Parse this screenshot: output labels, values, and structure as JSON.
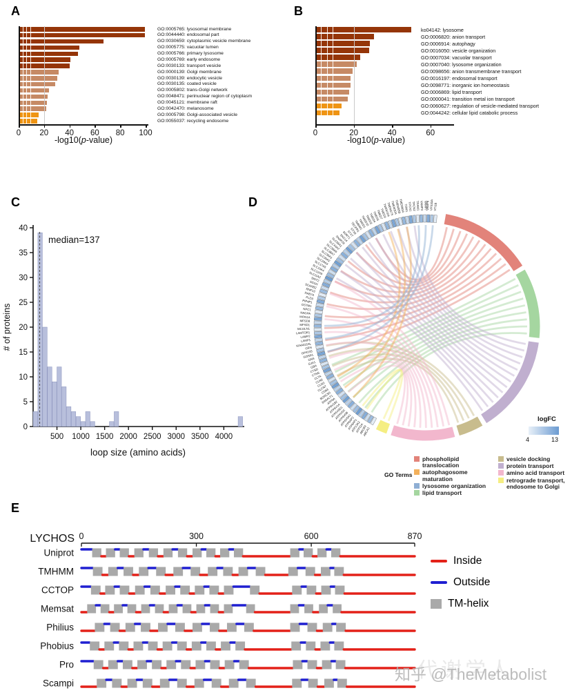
{
  "panel_labels": {
    "a": "A",
    "b": "B",
    "c": "C",
    "d": "D",
    "e": "E"
  },
  "axis_label": {
    "pre": "-log10(",
    "it": "p",
    "post": "-value)"
  },
  "watermark": {
    "text": "知乎 @TheMetabolist",
    "overlay": "代谢学人"
  },
  "chart_data": [
    {
      "id": "A",
      "type": "bar",
      "orientation": "horizontal",
      "xlabel": "-log10(p-value)",
      "xlim": [
        0,
        102
      ],
      "xticks": [
        0,
        20,
        40,
        60,
        80,
        100
      ],
      "categories": [
        "GO:0005765: lysosomal membrane",
        "GO:0044440: endosomal part",
        "GO:0030659: cytoplasmic vesicle membrane",
        "GO:0005775: vacuolar lumen",
        "GO:0005766: primary lysosome",
        "GO:0005769: early endosome",
        "GO:0030133: transport vesicle",
        "GO:0000139: Golgi membrane",
        "GO:0030139: endocytic vesicle",
        "GO:0030135: coated vesicle",
        "GO:0005802: trans-Golgi network",
        "GO:0048471: perinuclear region of cytoplasm",
        "GO:0045121: membrane raft",
        "GO:0042470: melanosome",
        "GO:0005798: Golgi-associated vesicle",
        "GO:0055037: recycling endosome"
      ],
      "values": [
        99.5,
        99.5,
        67,
        48,
        46.5,
        41,
        40,
        31.5,
        30.5,
        29,
        24,
        23,
        22.5,
        22,
        15.5,
        14.5
      ],
      "bar_color_keys": [
        "dark",
        "dark",
        "dark",
        "dark",
        "dark",
        "dark",
        "dark",
        "medium",
        "medium",
        "medium",
        "medium",
        "medium",
        "medium",
        "medium",
        "orange",
        "orange"
      ]
    },
    {
      "id": "B",
      "type": "bar",
      "orientation": "horizontal",
      "xlabel": "-log10(p-value)",
      "xlim": [
        0,
        72
      ],
      "xticks": [
        0,
        20,
        40,
        60
      ],
      "categories": [
        "ko04142: lysosome",
        "GO:0006820: anion transport",
        "GO:0006914: autophagy",
        "GO:0016050: vesicle organization",
        "GO:0007034: vacuolar transport",
        "GO:0007040: lysosome organization",
        "GO:0098656: anion transmembrane transport",
        "GO:0016197: endosomal transport",
        "GO:0098771: inorganic ion homeostasis",
        "GO:0006869: lipid transport",
        "GO:0000041: transition metal ion transport",
        "GO:0060627: regulation of vesicle-mediated transport",
        "GO:0044242: cellular lipid catabolic process"
      ],
      "values": [
        50,
        30.5,
        28.5,
        28,
        23.5,
        21.5,
        19.5,
        18.5,
        18.5,
        17.5,
        17,
        13.5,
        12.5
      ],
      "bar_color_keys": [
        "dark",
        "dark",
        "dark",
        "dark",
        "dark",
        "medium",
        "medium",
        "medium",
        "medium",
        "medium",
        "medium",
        "orange",
        "orange"
      ]
    },
    {
      "id": "C",
      "type": "histogram",
      "annotation": "median=137",
      "median": 137,
      "xlabel": "loop size (amino acids)",
      "ylabel": "# of proteins",
      "xticks": [
        500,
        1000,
        1500,
        2000,
        2500,
        3000,
        3500,
        4000
      ],
      "yticks": [
        0,
        5,
        10,
        15,
        20,
        25,
        30,
        35,
        40
      ],
      "xlim": [
        0,
        4400
      ],
      "ylim": [
        0,
        40
      ],
      "bin_width": 100,
      "counts": [
        3,
        39,
        20,
        12,
        9,
        12,
        8,
        4,
        3,
        2,
        1,
        3,
        1,
        0,
        0,
        0,
        1,
        3,
        0,
        0,
        0,
        0,
        0,
        0,
        0,
        0,
        0,
        0,
        0,
        0,
        0,
        0,
        0,
        0,
        0,
        0,
        0,
        0,
        0,
        0,
        0,
        0,
        0,
        2,
        0
      ]
    },
    {
      "id": "D",
      "type": "chord",
      "legend_title": "GO Terms",
      "go_terms": [
        {
          "label": "phospholipid translocation",
          "color": "#e2837a"
        },
        {
          "label": "autophagosome maturation",
          "color": "#f3b15c"
        },
        {
          "label": "lysosome organization",
          "color": "#8fafd4"
        },
        {
          "label": "lipid transport",
          "color": "#a5d6a0"
        },
        {
          "label": "vesicle docking",
          "color": "#c8bc8d"
        },
        {
          "label": "protein transport",
          "color": "#c0afcf"
        },
        {
          "label": "amino acid transport",
          "color": "#f2b7cd"
        },
        {
          "label": "retrograde transport, endosome to Golgi",
          "color": "#f5ee82"
        }
      ],
      "colorbar": {
        "label": "logFC",
        "min": "4",
        "max": "13"
      },
      "gene_labels": [
        "ABCA2",
        "ABCB9",
        "ATP11A",
        "ATP13A2",
        "ATP6AP1",
        "ATP6AP2",
        "ATP6V0A1",
        "ATP6V0B",
        "ATP6V0C",
        "ATP6V0D1",
        "ATP6V1A",
        "ATP6V1B2",
        "ATP9A",
        "B4GALT1",
        "BORCS5",
        "CD63",
        "CLCN7",
        "CLN3",
        "CLN6",
        "CLTA",
        "CTNS",
        "CTSD",
        "GBA",
        "GJA1",
        "GNS",
        "GOSR1",
        "GPR155",
        "GRN",
        "KIAA0319L",
        "LAMP1",
        "LAMP2",
        "LAMTOR1",
        "MCOLN1",
        "MFSD1",
        "MFSD8",
        "MON1A",
        "NAGPA",
        "NPC1",
        "OSTM1",
        "PIP4P1",
        "PLD3",
        "RAB7A",
        "RNF13",
        "SCARB2",
        "SGSH",
        "SIDT2",
        "SLC11A2",
        "SLC12A9",
        "SLC15A4",
        "SLC17A5",
        "SLC29A3",
        "SLC30A2",
        "SLC36A1",
        "SLC38A7",
        "SLC38A9",
        "SLC44A2",
        "SLC66A1",
        "SNAP29",
        "SNX14",
        "SORT1",
        "STX7",
        "STX8",
        "TECPR1",
        "TMBIM1",
        "TMED1",
        "TMED10",
        "TMED3",
        "TMED4",
        "TMED5",
        "TMED7",
        "TMED9",
        "TMEM104",
        "TMEM175",
        "TMEM30A",
        "TMEM55B",
        "TMEM63A",
        "TOM1",
        "TPCN1",
        "TPCN2",
        "TRAM1",
        "VAMP3",
        "VAMP7",
        "VAMP8",
        "VPS33A",
        "VTI1B"
      ]
    },
    {
      "id": "E",
      "type": "topology",
      "protein": "LYCHOS",
      "length": 870,
      "ruler_ticks": [
        0,
        300,
        600,
        870
      ],
      "legend": [
        {
          "label": "Inside",
          "color": "#e32119",
          "style": "line"
        },
        {
          "label": "Outside",
          "color": "#1f1fd1",
          "style": "line"
        },
        {
          "label": "TM-helix",
          "color": "#a9a9a9",
          "style": "box"
        }
      ],
      "tracks": [
        {
          "name": "Uniprot",
          "first_side": "outside",
          "tms": [
            [
              28,
              52
            ],
            [
              64,
              88
            ],
            [
              100,
              124
            ],
            [
              138,
              162
            ],
            [
              176,
              200
            ],
            [
              214,
              238
            ],
            [
              252,
              276
            ],
            [
              290,
              314
            ],
            [
              326,
              350
            ],
            [
              362,
              386
            ],
            [
              398,
              422
            ],
            [
              545,
              569
            ],
            [
              580,
              604
            ],
            [
              616,
              640
            ],
            [
              652,
              676
            ]
          ]
        },
        {
          "name": "TMHMM",
          "first_side": "outside",
          "tms": [
            [
              30,
              55
            ],
            [
              70,
              95
            ],
            [
              110,
              135
            ],
            [
              150,
              175
            ],
            [
              195,
              220
            ],
            [
              240,
              265
            ],
            [
              285,
              310
            ],
            [
              330,
              355
            ],
            [
              370,
              395
            ],
            [
              410,
              435
            ],
            [
              455,
              480
            ],
            [
              540,
              565
            ],
            [
              585,
              610
            ],
            [
              625,
              650
            ],
            [
              660,
              685
            ]
          ]
        },
        {
          "name": "CCTOP",
          "first_side": "outside",
          "tms": [
            [
              25,
              50
            ],
            [
              62,
              87
            ],
            [
              100,
              125
            ],
            [
              140,
              165
            ],
            [
              180,
              205
            ],
            [
              220,
              245
            ],
            [
              258,
              283
            ],
            [
              296,
              321
            ],
            [
              334,
              359
            ],
            [
              372,
              397
            ],
            [
              440,
              465
            ],
            [
              550,
              575
            ],
            [
              588,
              613
            ],
            [
              626,
              651
            ],
            [
              662,
              687
            ]
          ]
        },
        {
          "name": "Memsat",
          "first_side": "inside",
          "tms": [
            [
              15,
              38
            ],
            [
              50,
              73
            ],
            [
              85,
              108
            ],
            [
              120,
              143
            ],
            [
              156,
              179
            ],
            [
              192,
              215
            ],
            [
              228,
              251
            ],
            [
              264,
              287
            ],
            [
              300,
              323
            ],
            [
              336,
              359
            ],
            [
              372,
              395
            ],
            [
              430,
              453
            ],
            [
              545,
              568
            ],
            [
              582,
              605
            ],
            [
              620,
              643
            ],
            [
              656,
              679
            ]
          ]
        },
        {
          "name": "Philius",
          "first_side": "inside",
          "tms": [
            [
              35,
              60
            ],
            [
              75,
              100
            ],
            [
              115,
              140
            ],
            [
              155,
              180
            ],
            [
              200,
              225
            ],
            [
              245,
              270
            ],
            [
              290,
              315
            ],
            [
              335,
              360
            ],
            [
              380,
              405
            ],
            [
              425,
              450
            ],
            [
              545,
              570
            ],
            [
              590,
              615
            ],
            [
              630,
              655
            ],
            [
              665,
              690
            ]
          ]
        },
        {
          "name": "Phobius",
          "first_side": "outside",
          "tms": [
            [
              22,
              47
            ],
            [
              60,
              85
            ],
            [
              98,
              123
            ],
            [
              136,
              161
            ],
            [
              174,
              199
            ],
            [
              212,
              237
            ],
            [
              250,
              275
            ],
            [
              288,
              313
            ],
            [
              326,
              351
            ],
            [
              364,
              389
            ],
            [
              402,
              427
            ],
            [
              548,
              573
            ],
            [
              586,
              611
            ],
            [
              624,
              649
            ],
            [
              660,
              685
            ]
          ]
        },
        {
          "name": "Pro",
          "first_side": "outside",
          "tms": [
            [
              32,
              57
            ],
            [
              70,
              95
            ],
            [
              108,
              133
            ],
            [
              146,
              171
            ],
            [
              184,
              209
            ],
            [
              222,
              247
            ],
            [
              260,
              285
            ],
            [
              298,
              323
            ],
            [
              336,
              361
            ],
            [
              374,
              399
            ],
            [
              412,
              437
            ],
            [
              552,
              577
            ],
            [
              590,
              615
            ],
            [
              628,
              653
            ],
            [
              664,
              689
            ]
          ]
        },
        {
          "name": "Scampi",
          "first_side": "inside",
          "tms": [
            [
              40,
              65
            ],
            [
              80,
              105
            ],
            [
              120,
              145
            ],
            [
              160,
              185
            ],
            [
              205,
              230
            ],
            [
              250,
              275
            ],
            [
              295,
              320
            ],
            [
              340,
              365
            ],
            [
              385,
              410
            ],
            [
              430,
              455
            ],
            [
              550,
              575
            ],
            [
              592,
              617
            ],
            [
              634,
              659
            ],
            [
              668,
              693
            ]
          ]
        }
      ]
    }
  ],
  "colors": {
    "dark": "#953508",
    "medium": "#c68a65",
    "orange": "#ef9414",
    "hist_fill": "#b8bfdc",
    "hist_stroke": "#8a93bc",
    "inside": "#e32119",
    "outside": "#1f1fd1",
    "tm": "#a9a9a9"
  }
}
